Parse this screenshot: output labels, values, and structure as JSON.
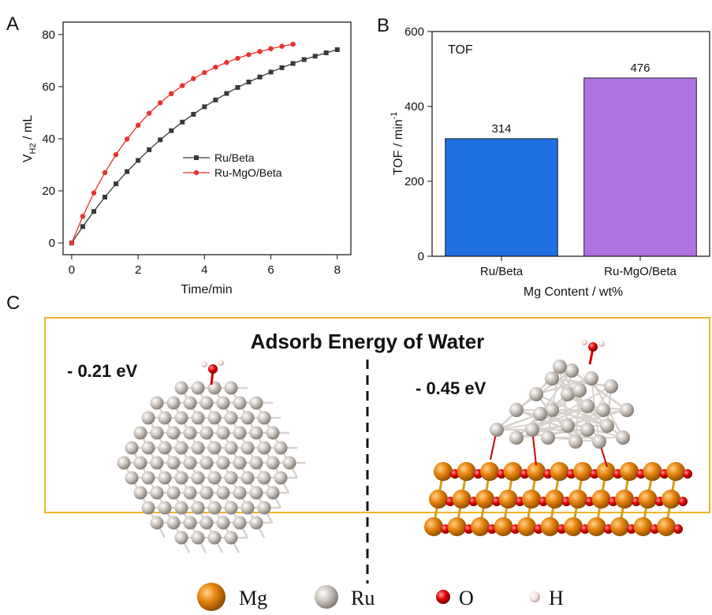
{
  "panel_labels": [
    "A",
    "B",
    "C"
  ],
  "chart_data": [
    {
      "type": "line",
      "x_label": "Time/min",
      "y_label": [
        "V",
        "H2",
        " / mL"
      ],
      "xlim": [
        -0.26,
        8.41
      ],
      "ylim": [
        -4.5,
        84.8
      ],
      "xticks": [
        0,
        2,
        4,
        6,
        8
      ],
      "yticks": [
        0,
        20,
        40,
        60,
        80
      ],
      "series": [
        {
          "name": "Ru/Beta",
          "color": "#3a3a3a",
          "marker": "square",
          "x": [
            0,
            0.333,
            0.667,
            1.0,
            1.333,
            1.667,
            2.0,
            2.333,
            2.667,
            3.0,
            3.333,
            3.667,
            4.0,
            4.333,
            4.667,
            5.0,
            5.333,
            5.667,
            6.0,
            6.333,
            6.667,
            7.0,
            7.333,
            7.667,
            8.0
          ],
          "values": [
            0,
            6.3,
            12.1,
            17.6,
            22.7,
            27.4,
            31.7,
            35.8,
            39.6,
            43.1,
            46.4,
            49.4,
            52.3,
            54.9,
            57.4,
            59.7,
            61.8,
            63.7,
            65.6,
            67.3,
            68.9,
            70.4,
            71.7,
            73.0,
            74.2
          ]
        },
        {
          "name": "Ru-MgO/Beta",
          "color": "#e8312f",
          "marker": "circle",
          "x": [
            0,
            0.333,
            0.667,
            1.0,
            1.333,
            1.667,
            2.0,
            2.333,
            2.667,
            3.0,
            3.333,
            3.667,
            4.0,
            4.333,
            4.667,
            5.0,
            5.333,
            5.667,
            6.0,
            6.333,
            6.667
          ],
          "values": [
            0,
            10.2,
            19.2,
            27.0,
            33.9,
            39.9,
            45.2,
            49.8,
            53.8,
            57.3,
            60.4,
            63.1,
            65.4,
            67.5,
            69.3,
            70.9,
            72.3,
            73.5,
            74.6,
            75.5,
            76.3
          ]
        }
      ]
    },
    {
      "type": "bar",
      "annotation": "TOF",
      "annotation_color": "#e8312f",
      "x_label": "Mg Content / wt%",
      "y_label": [
        "TOF / min",
        "-1"
      ],
      "categories": [
        "Ru/Beta",
        "Ru-MgO/Beta"
      ],
      "values": [
        314,
        476
      ],
      "colors": [
        "#1f6fe0",
        "#b072e0"
      ],
      "ylim": [
        0,
        600
      ],
      "yticks": [
        0,
        200,
        400,
        600
      ]
    }
  ],
  "panel_c": {
    "title": "Adsorb Energy of Water",
    "energies": [
      {
        "label": "- 0.21 eV",
        "color": "#2e75b6"
      },
      {
        "label": "- 0.45 eV",
        "color": "#7030a0"
      }
    ],
    "legend": [
      "Mg",
      "Ru",
      "O",
      "H"
    ]
  }
}
